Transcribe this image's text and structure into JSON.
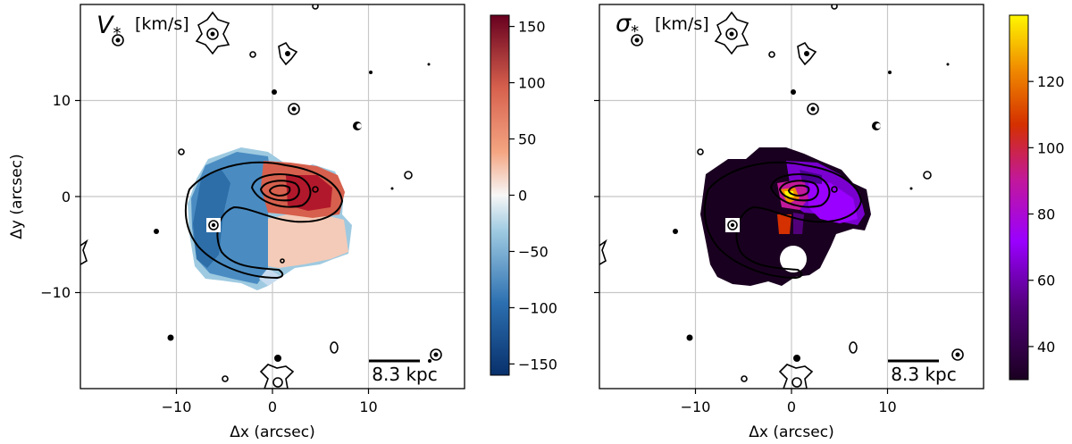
{
  "chart_data": [
    {
      "type": "heatmap",
      "title": "V",
      "title_subscript": "*",
      "title_unit": "[km/s]",
      "xlabel": "Δx (arcsec)",
      "ylabel": "Δy (arcsec)",
      "xlim": [
        -20,
        20
      ],
      "ylim": [
        -20,
        20
      ],
      "xticks": [
        -10,
        0,
        10
      ],
      "yticks": [
        -10,
        0,
        10
      ],
      "tick_labels_x": [
        "−10",
        "0",
        "10"
      ],
      "tick_labels_y": [
        "−10",
        "0",
        "10"
      ],
      "grid": true,
      "colormap": "RdBu_r",
      "colorbar_range": [
        -160,
        160
      ],
      "colorbar_ticks": [
        150,
        100,
        50,
        0,
        -50,
        -100,
        -150
      ],
      "colorbar_tick_labels": [
        "150",
        "100",
        "50",
        "0",
        "−50",
        "−100",
        "−150"
      ],
      "scale_bar_label": "8.3 kpc",
      "colors": {
        "low": "#08306b",
        "mid": "#f7f7f7",
        "high": "#67001f"
      }
    },
    {
      "type": "heatmap",
      "title": "σ",
      "title_subscript": "*",
      "title_unit": "[km/s]",
      "xlabel": "Δx (arcsec)",
      "ylabel": "",
      "xlim": [
        -20,
        20
      ],
      "ylim": [
        -20,
        20
      ],
      "xticks": [
        -10,
        0,
        10
      ],
      "yticks": [
        -10,
        0,
        10
      ],
      "tick_labels_x": [
        "−10",
        "0",
        "10"
      ],
      "grid": true,
      "colormap": "gnuplot",
      "colorbar_range": [
        30,
        140
      ],
      "colorbar_ticks": [
        120,
        100,
        80,
        60,
        40
      ],
      "colorbar_tick_labels": [
        "120",
        "100",
        "80",
        "60",
        "40"
      ],
      "scale_bar_label": "8.3 kpc",
      "colors": {
        "low": "#1a0020",
        "mid": "#9a00ff",
        "high": "#fff700"
      }
    }
  ]
}
